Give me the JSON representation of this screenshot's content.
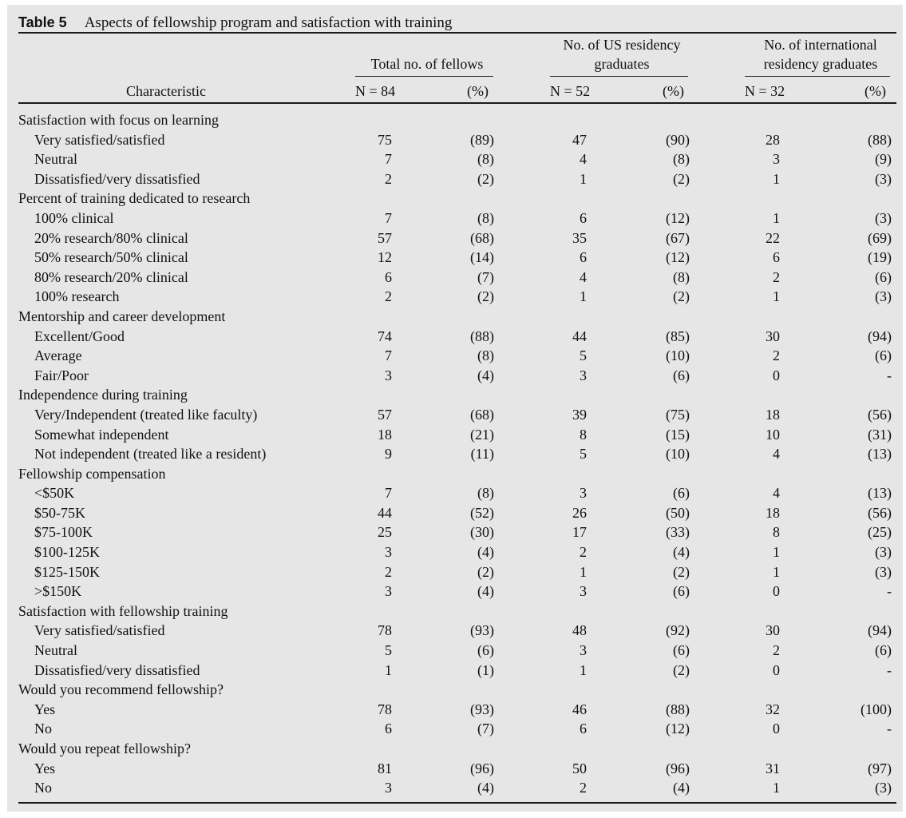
{
  "table": {
    "label": "Table 5",
    "title": "Aspects of fellowship program and satisfaction with training",
    "column_groups": [
      {
        "line1": "",
        "line2": "Total no. of fellows",
        "n": "N = 84",
        "pct": "(%)"
      },
      {
        "line1": "No. of US residency",
        "line2": "graduates",
        "n": "N = 52",
        "pct": "(%)"
      },
      {
        "line1": "No. of international",
        "line2": "residency graduates",
        "n": "N = 32",
        "pct": "(%)"
      }
    ],
    "characteristic_header": "Characteristic",
    "rows": [
      {
        "type": "section",
        "label": "Satisfaction with focus on learning"
      },
      {
        "type": "item",
        "label": "Very satisfied/satisfied",
        "t": "75",
        "tp": "(89)",
        "u": "47",
        "up": "(90)",
        "i": "28",
        "ip": "(88)"
      },
      {
        "type": "item",
        "label": "Neutral",
        "t": "7",
        "tp": "(8)",
        "u": "4",
        "up": "(8)",
        "i": "3",
        "ip": "(9)"
      },
      {
        "type": "item",
        "label": "Dissatisfied/very dissatisfied",
        "t": "2",
        "tp": "(2)",
        "u": "1",
        "up": "(2)",
        "i": "1",
        "ip": "(3)"
      },
      {
        "type": "section",
        "label": "Percent of training dedicated to research"
      },
      {
        "type": "item",
        "label": "100% clinical",
        "t": "7",
        "tp": "(8)",
        "u": "6",
        "up": "(12)",
        "i": "1",
        "ip": "(3)"
      },
      {
        "type": "item",
        "label": "20% research/80% clinical",
        "t": "57",
        "tp": "(68)",
        "u": "35",
        "up": "(67)",
        "i": "22",
        "ip": "(69)"
      },
      {
        "type": "item",
        "label": "50% research/50% clinical",
        "t": "12",
        "tp": "(14)",
        "u": "6",
        "up": "(12)",
        "i": "6",
        "ip": "(19)"
      },
      {
        "type": "item",
        "label": "80% research/20% clinical",
        "t": "6",
        "tp": "(7)",
        "u": "4",
        "up": "(8)",
        "i": "2",
        "ip": "(6)"
      },
      {
        "type": "item",
        "label": "100% research",
        "t": "2",
        "tp": "(2)",
        "u": "1",
        "up": "(2)",
        "i": "1",
        "ip": "(3)"
      },
      {
        "type": "section",
        "label": "Mentorship and career development"
      },
      {
        "type": "item",
        "label": "Excellent/Good",
        "t": "74",
        "tp": "(88)",
        "u": "44",
        "up": "(85)",
        "i": "30",
        "ip": "(94)"
      },
      {
        "type": "item",
        "label": "Average",
        "t": "7",
        "tp": "(8)",
        "u": "5",
        "up": "(10)",
        "i": "2",
        "ip": "(6)"
      },
      {
        "type": "item",
        "label": "Fair/Poor",
        "t": "3",
        "tp": "(4)",
        "u": "3",
        "up": "(6)",
        "i": "0",
        "ip": "-"
      },
      {
        "type": "section",
        "label": "Independence during training"
      },
      {
        "type": "item",
        "label": "Very/Independent (treated like faculty)",
        "t": "57",
        "tp": "(68)",
        "u": "39",
        "up": "(75)",
        "i": "18",
        "ip": "(56)"
      },
      {
        "type": "item",
        "label": "Somewhat independent",
        "t": "18",
        "tp": "(21)",
        "u": "8",
        "up": "(15)",
        "i": "10",
        "ip": "(31)"
      },
      {
        "type": "item",
        "label": "Not independent (treated like a resident)",
        "t": "9",
        "tp": "(11)",
        "u": "5",
        "up": "(10)",
        "i": "4",
        "ip": "(13)"
      },
      {
        "type": "section",
        "label": "Fellowship compensation"
      },
      {
        "type": "item",
        "label": "<$50K",
        "t": "7",
        "tp": "(8)",
        "u": "3",
        "up": "(6)",
        "i": "4",
        "ip": "(13)"
      },
      {
        "type": "item",
        "label": "$50-75K",
        "t": "44",
        "tp": "(52)",
        "u": "26",
        "up": "(50)",
        "i": "18",
        "ip": "(56)"
      },
      {
        "type": "item",
        "label": "$75-100K",
        "t": "25",
        "tp": "(30)",
        "u": "17",
        "up": "(33)",
        "i": "8",
        "ip": "(25)"
      },
      {
        "type": "item",
        "label": "$100-125K",
        "t": "3",
        "tp": "(4)",
        "u": "2",
        "up": "(4)",
        "i": "1",
        "ip": "(3)"
      },
      {
        "type": "item",
        "label": "$125-150K",
        "t": "2",
        "tp": "(2)",
        "u": "1",
        "up": "(2)",
        "i": "1",
        "ip": "(3)"
      },
      {
        "type": "item",
        "label": ">$150K",
        "t": "3",
        "tp": "(4)",
        "u": "3",
        "up": "(6)",
        "i": "0",
        "ip": "-"
      },
      {
        "type": "section",
        "label": "Satisfaction with fellowship training"
      },
      {
        "type": "item",
        "label": "Very satisfied/satisfied",
        "t": "78",
        "tp": "(93)",
        "u": "48",
        "up": "(92)",
        "i": "30",
        "ip": "(94)"
      },
      {
        "type": "item",
        "label": "Neutral",
        "t": "5",
        "tp": "(6)",
        "u": "3",
        "up": "(6)",
        "i": "2",
        "ip": "(6)"
      },
      {
        "type": "item",
        "label": "Dissatisfied/very dissatisfied",
        "t": "1",
        "tp": "(1)",
        "u": "1",
        "up": "(2)",
        "i": "0",
        "ip": "-"
      },
      {
        "type": "section",
        "label": "Would you recommend fellowship?"
      },
      {
        "type": "item",
        "label": "Yes",
        "t": "78",
        "tp": "(93)",
        "u": "46",
        "up": "(88)",
        "i": "32",
        "ip": "(100)"
      },
      {
        "type": "item",
        "label": "No",
        "t": "6",
        "tp": "(7)",
        "u": "6",
        "up": "(12)",
        "i": "0",
        "ip": "-"
      },
      {
        "type": "section",
        "label": "Would you repeat fellowship?"
      },
      {
        "type": "item",
        "label": "Yes",
        "t": "81",
        "tp": "(96)",
        "u": "50",
        "up": "(96)",
        "i": "31",
        "ip": "(97)"
      },
      {
        "type": "item",
        "label": "No",
        "t": "3",
        "tp": "(4)",
        "u": "2",
        "up": "(4)",
        "i": "1",
        "ip": "(3)"
      }
    ]
  }
}
